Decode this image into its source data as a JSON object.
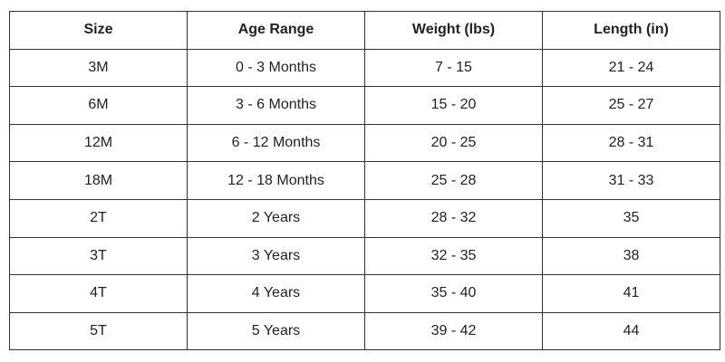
{
  "table": {
    "header": [
      "Size",
      "Age Range",
      "Weight (lbs)",
      "Length (in)"
    ],
    "rows": [
      [
        "3M",
        "0 - 3 Months",
        "7 - 15",
        "21 - 24"
      ],
      [
        "6M",
        "3 - 6 Months",
        "15 - 20",
        "25 - 27"
      ],
      [
        "12M",
        "6 - 12 Months",
        "20 - 25",
        "28 - 31"
      ],
      [
        "18M",
        "12 - 18 Months",
        "25 - 28",
        "31 - 33"
      ],
      [
        "2T",
        "2 Years",
        "28 - 32",
        "35"
      ],
      [
        "3T",
        "3 Years",
        "32 - 35",
        "38"
      ],
      [
        "4T",
        "4 Years",
        "35 - 40",
        "41"
      ],
      [
        "5T",
        "5 Years",
        "39 - 42",
        "44"
      ]
    ]
  }
}
